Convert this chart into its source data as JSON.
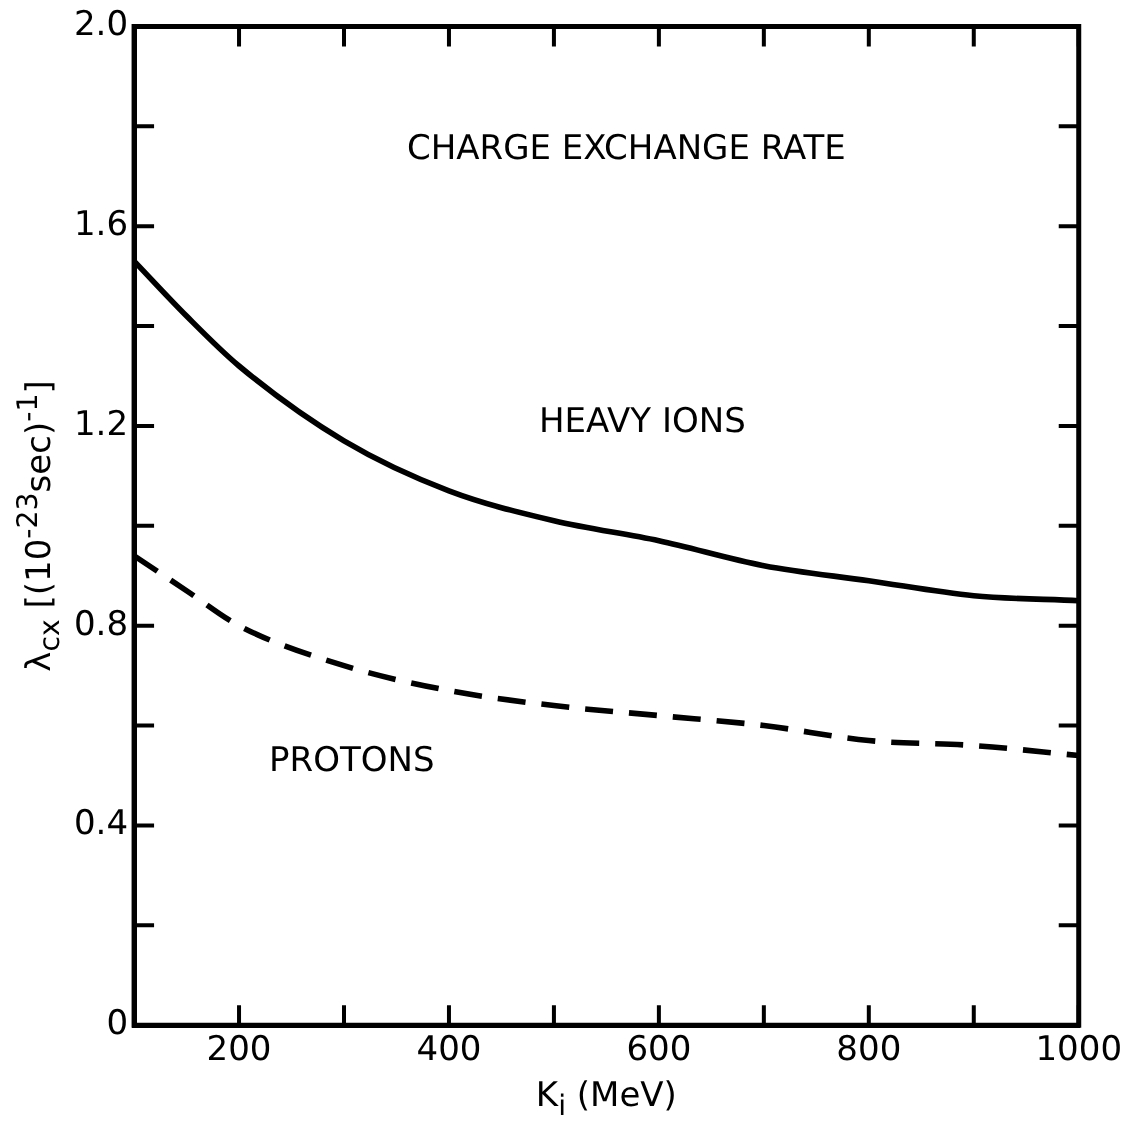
{
  "chart_data": {
    "type": "line",
    "xlabel": "K$_{i}$ (MeV)",
    "ylabel": "λ$_{cx}$ [(10$^{-23}$sec)$^{-1}$]",
    "annotations": [
      "CHARGE EXCHANGE RATE"
    ],
    "x": [
      100,
      150,
      200,
      300,
      400,
      500,
      600,
      700,
      800,
      900,
      1000
    ],
    "series": [
      {
        "name": "HEAVY IONS",
        "color": "#000000",
        "line_style": "solid",
        "values": [
          1.53,
          1.42,
          1.32,
          1.17,
          1.07,
          1.01,
          0.97,
          0.92,
          0.89,
          0.86,
          0.85
        ]
      },
      {
        "name": "PROTONS",
        "color": "#000000",
        "line_style": "dashed",
        "values": [
          0.94,
          0.87,
          0.8,
          0.72,
          0.67,
          0.64,
          0.62,
          0.6,
          0.57,
          0.56,
          0.54
        ]
      }
    ],
    "xlim": [
      100,
      1000
    ],
    "xticks": [
      200,
      {
        "value": 300,
        "label": null
      },
      400,
      {
        "value": 500,
        "label": null
      },
      600,
      {
        "value": 700,
        "label": null
      },
      800,
      {
        "value": 900,
        "label": null
      },
      1000
    ],
    "ylim": [
      0,
      2.0
    ],
    "yticks": [
      0,
      {
        "value": 0.2,
        "label": null
      },
      0.4,
      {
        "value": 0.6,
        "label": null
      },
      0.8,
      {
        "value": 1.0,
        "label": null
      },
      1.2,
      {
        "value": 1.4,
        "label": null
      },
      1.6,
      {
        "value": 1.8,
        "label": null
      },
      {
        "value": 2.0,
        "label": "2.0"
      }
    ],
    "grid": false,
    "legend": false,
    "marker": "none"
  }
}
